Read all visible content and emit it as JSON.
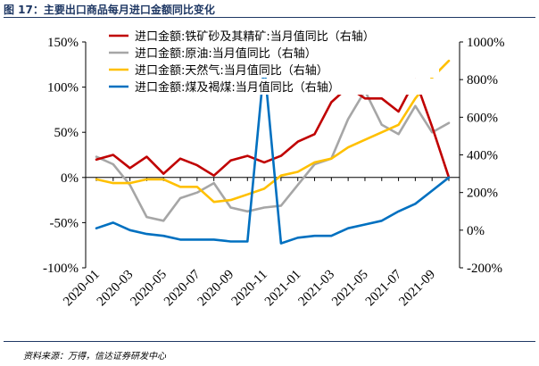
{
  "figure": {
    "title": "图 17：主要出口商品每月进口金额同比变化",
    "source": "资料来源：万得，信达证券研发中心"
  },
  "colors": {
    "iron_ore": "#c00000",
    "crude_oil": "#a6a6a6",
    "natural_gas": "#ffc000",
    "coal": "#0070c0",
    "axis": "#000000"
  },
  "chart_data": {
    "type": "line",
    "x": [
      "2020-01",
      "2020-02",
      "2020-03",
      "2020-04",
      "2020-05",
      "2020-06",
      "2020-07",
      "2020-08",
      "2020-09",
      "2020-10",
      "2020-11",
      "2020-12",
      "2021-01",
      "2021-02",
      "2021-03",
      "2021-04",
      "2021-05",
      "2021-06",
      "2021-07",
      "2021-08",
      "2021-09",
      "2021-10"
    ],
    "x_tick_labels": [
      "2020-01",
      "2020-03",
      "2020-05",
      "2020-07",
      "2020-09",
      "2020-11",
      "2021-01",
      "2021-03",
      "2021-05",
      "2021-07",
      "2021-09"
    ],
    "y_left": {
      "ticks": [
        "150%",
        "100%",
        "50%",
        "0%",
        "-50%",
        "-100%"
      ],
      "ylim": [
        -100,
        150
      ]
    },
    "y_right": {
      "ticks": [
        "1000%",
        "800%",
        "600%",
        "400%",
        "200%",
        "0%",
        "-200%"
      ],
      "ylim": [
        -200,
        1000
      ]
    },
    "legend_position": "top-center",
    "series": [
      {
        "name": "进口金额:铁矿砂及其精矿:当月值同比（右轴）",
        "axis": "right",
        "color_key": "iron_ore",
        "values": [
          375,
          400,
          330,
          390,
          300,
          380,
          345,
          290,
          370,
          395,
          360,
          395,
          470,
          510,
          680,
          760,
          700,
          700,
          630,
          800,
          550,
          280
        ]
      },
      {
        "name": "进口金额:原油:当月值同比（右轴）",
        "axis": "right",
        "color_key": "crude_oil",
        "values": [
          390,
          350,
          240,
          70,
          50,
          170,
          200,
          250,
          120,
          100,
          120,
          130,
          240,
          350,
          380,
          590,
          740,
          560,
          510,
          660,
          520,
          570
        ]
      },
      {
        "name": "进口金额:天然气:当月值同比（右轴）",
        "axis": "right",
        "color_key": "natural_gas",
        "values": [
          270,
          250,
          250,
          270,
          270,
          230,
          230,
          150,
          160,
          190,
          220,
          290,
          310,
          360,
          380,
          440,
          480,
          520,
          560,
          700,
          810,
          900
        ]
      },
      {
        "name": "进口金额:煤及褐煤:当月值同比（右轴）",
        "axis": "right",
        "color_key": "coal",
        "values": [
          10,
          40,
          0,
          -20,
          -30,
          -50,
          -50,
          -50,
          -60,
          -60,
          880,
          -70,
          -40,
          -30,
          -30,
          10,
          30,
          50,
          100,
          140,
          210,
          280
        ]
      }
    ]
  }
}
